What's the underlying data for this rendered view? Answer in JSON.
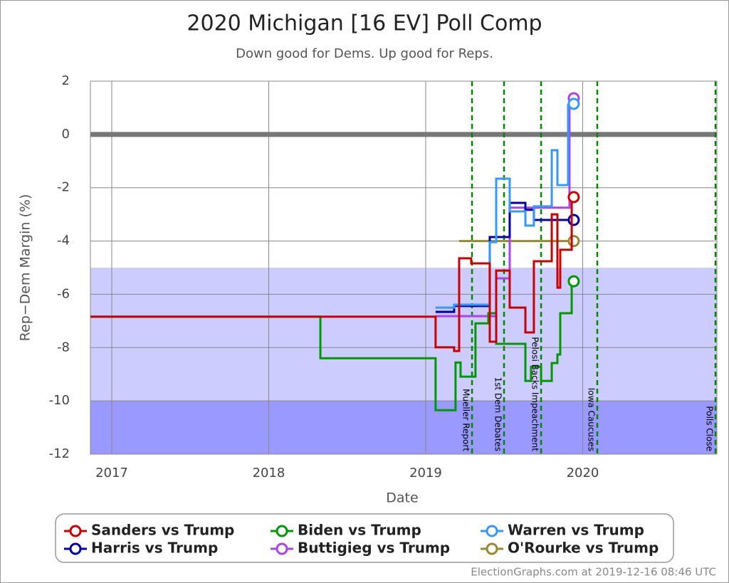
{
  "chart_data": {
    "type": "step-line",
    "title": "2020 Michigan [16 EV] Poll Comp",
    "subtitle": "Down good for Dems. Up good for Reps.",
    "x_label": "Date",
    "y_label": "Rep−Dem Margin (%)",
    "footer": "ElectionGraphs.com at 2019-12-16 08:46 UTC",
    "xlim": [
      2016.864,
      2020.855
    ],
    "xticks": [
      2017,
      2018,
      2019,
      2020
    ],
    "ylim": [
      -12,
      2
    ],
    "yticks": [
      2,
      0,
      -2,
      -4,
      -6,
      -8,
      -10,
      -12
    ],
    "grid": true,
    "zero_line": true,
    "bands": [
      {
        "from": -10,
        "to": -5,
        "color": "#ccccff"
      },
      {
        "from": -12,
        "to": -10,
        "color": "#9999ff"
      }
    ],
    "events": [
      {
        "x": 2019.295,
        "label": "Mueller Report"
      },
      {
        "x": 2019.499,
        "label": "1st Dem Debates"
      },
      {
        "x": 2019.735,
        "label": "Pelosi Backs Impeachment"
      },
      {
        "x": 2020.093,
        "label": "Iowa Caucuses"
      },
      {
        "x": 2020.846,
        "label": "Polls Close"
      }
    ],
    "series": [
      {
        "name": "Sanders vs Trump",
        "color": "#cc0000",
        "x": [
          2016.864,
          2019.063,
          2019.181,
          2019.213,
          2019.29,
          2019.408,
          2019.449,
          2019.535,
          2019.635,
          2019.689,
          2019.803,
          2019.839,
          2019.857,
          2019.93,
          2019.943
        ],
        "values": [
          -6.84,
          -7.99,
          -8.13,
          -4.65,
          -4.84,
          -7.78,
          -5.11,
          -6.5,
          -7.43,
          -4.76,
          -3.0,
          -5.75,
          -4.33,
          -2.35,
          -2.35
        ]
      },
      {
        "name": "Biden vs Trump",
        "color": "#009900",
        "x": [
          2016.864,
          2018.329,
          2019.063,
          2019.19,
          2019.222,
          2019.317,
          2019.399,
          2019.449,
          2019.635,
          2019.671,
          2019.735,
          2019.803,
          2019.839,
          2019.857,
          2019.93,
          2019.943
        ],
        "values": [
          -6.84,
          -8.4,
          -10.35,
          -8.56,
          -9.09,
          -7.09,
          -6.71,
          -7.86,
          -9.25,
          -8.72,
          -9.25,
          -8.58,
          -8.26,
          -6.71,
          -5.51,
          -5.51
        ]
      },
      {
        "name": "Warren vs Trump",
        "color": "#3399ff",
        "x": [
          2019.063,
          2019.181,
          2019.408,
          2019.449,
          2019.535,
          2019.635,
          2019.689,
          2019.803,
          2019.839,
          2019.907,
          2019.943
        ],
        "values": [
          -6.5,
          -6.39,
          -4.04,
          -1.66,
          -2.89,
          -3.42,
          -2.7,
          -0.59,
          -1.9,
          1.1,
          1.15
        ]
      },
      {
        "name": "Harris vs Trump",
        "color": "#0000aa",
        "x": [
          2019.063,
          2019.181,
          2019.408,
          2019.535,
          2019.635,
          2019.689,
          2019.943
        ],
        "values": [
          -6.66,
          -6.44,
          -3.85,
          -2.57,
          -2.83,
          -3.21,
          -3.21
        ]
      },
      {
        "name": "Buttigieg vs Trump",
        "color": "#aa44ee",
        "x": [
          2019.063,
          2019.449,
          2019.535,
          2019.916,
          2019.943
        ],
        "values": [
          -6.82,
          -5.4,
          -2.75,
          1.36,
          1.36
        ]
      },
      {
        "name": "O'Rourke vs Trump",
        "color": "#998833",
        "x": [
          2019.213,
          2019.943
        ],
        "values": [
          -4.0,
          -4.0
        ]
      }
    ]
  }
}
